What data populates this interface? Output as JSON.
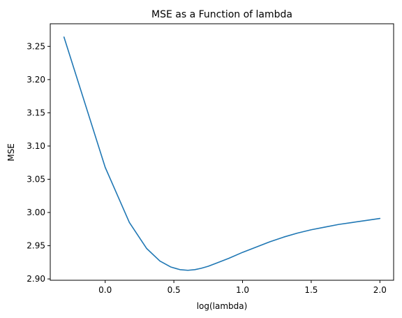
{
  "chart_data": {
    "type": "line",
    "title": "MSE as a Function of lambda",
    "xlabel": "log(lambda)",
    "ylabel": "MSE",
    "xlim": [
      -0.4,
      2.1
    ],
    "ylim": [
      2.898,
      3.284
    ],
    "x_ticks": [
      0.0,
      0.5,
      1.0,
      1.5,
      2.0
    ],
    "x_tick_labels": [
      "0.0",
      "0.5",
      "1.0",
      "1.5",
      "2.0"
    ],
    "y_ticks": [
      2.9,
      2.95,
      3.0,
      3.05,
      3.1,
      3.15,
      3.2,
      3.25
    ],
    "y_tick_labels": [
      "2.90",
      "2.95",
      "3.00",
      "3.05",
      "3.10",
      "3.15",
      "3.20",
      "3.25"
    ],
    "grid": false,
    "series": [
      {
        "color": "#1f77b4",
        "x": [
          -0.3,
          0.0,
          0.176,
          0.301,
          0.398,
          0.477,
          0.544,
          0.602,
          0.653,
          0.699,
          0.75,
          0.8,
          0.9,
          1.0,
          1.1,
          1.2,
          1.3,
          1.4,
          1.5,
          1.6,
          1.7,
          1.8,
          1.9,
          2.0
        ],
        "y": [
          3.264,
          3.068,
          2.985,
          2.946,
          2.927,
          2.918,
          2.914,
          2.913,
          2.914,
          2.916,
          2.919,
          2.923,
          2.931,
          2.94,
          2.948,
          2.956,
          2.963,
          2.969,
          2.974,
          2.978,
          2.982,
          2.985,
          2.988,
          2.991
        ]
      }
    ]
  }
}
